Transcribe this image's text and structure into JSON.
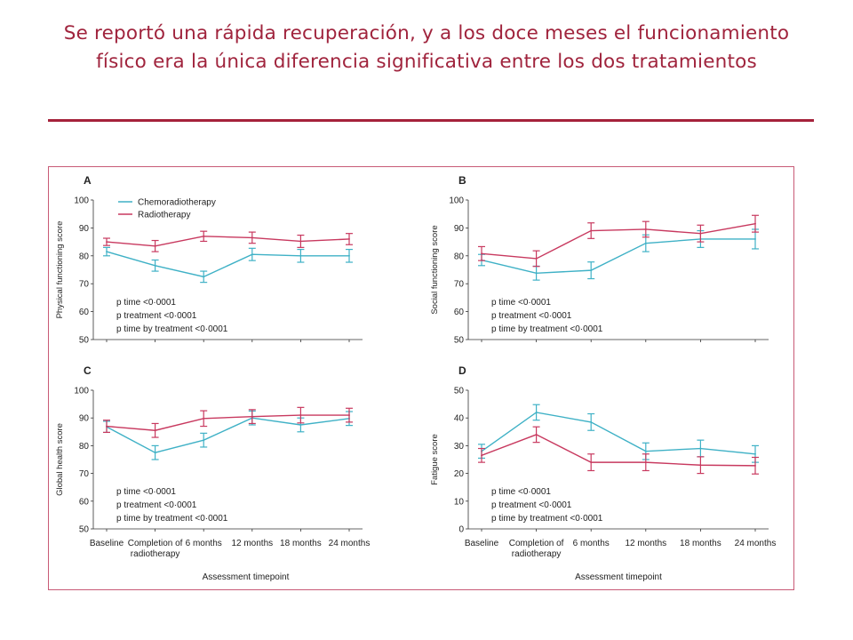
{
  "slide": {
    "title": "Se reportó una rápida recuperación, y a los doce meses el funcionamiento físico era la única diferencia significativa entre los dos tratamientos"
  },
  "colors": {
    "accent": "#a5223b",
    "chemoradiotherapy": "#3fb1c6",
    "radiotherapy": "#c8395f"
  },
  "chart_data": [
    {
      "panel": "A",
      "type": "line",
      "ylabel": "Physical functioning score",
      "ylim": [
        50,
        100
      ],
      "yticks": [
        50,
        60,
        70,
        80,
        90,
        100
      ],
      "categories": [
        "Baseline",
        "Completion of radiotherapy",
        "6 months",
        "12 months",
        "18 months",
        "24 months"
      ],
      "series": [
        {
          "name": "Chemoradiotherapy",
          "values": [
            81.5,
            76.5,
            72.5,
            80.5,
            80,
            80
          ],
          "err": [
            1.5,
            2,
            2,
            2.2,
            2.3,
            2.3
          ]
        },
        {
          "name": "Radiotherapy",
          "values": [
            85,
            83.5,
            87,
            86.5,
            85.2,
            86
          ],
          "err": [
            1.3,
            2,
            1.8,
            2,
            2.2,
            2
          ]
        }
      ],
      "annotations": [
        "p time <0·0001",
        "p treatment <0·0001",
        "p time by treatment <0·0001"
      ],
      "legend": "top-left"
    },
    {
      "panel": "B",
      "type": "line",
      "ylabel": "Social functioning score",
      "ylim": [
        50,
        100
      ],
      "yticks": [
        50,
        60,
        70,
        80,
        90,
        100
      ],
      "categories": [
        "Baseline",
        "Completion of radiotherapy",
        "6 months",
        "12 months",
        "18 months",
        "24 months"
      ],
      "series": [
        {
          "name": "Chemoradiotherapy",
          "values": [
            78.5,
            73.8,
            74.8,
            84.5,
            86,
            86
          ],
          "err": [
            2,
            2.5,
            3,
            3,
            3,
            3.5
          ]
        },
        {
          "name": "Radiotherapy",
          "values": [
            80.8,
            79,
            89,
            89.5,
            88,
            91.5
          ],
          "err": [
            2.5,
            2.8,
            2.8,
            2.8,
            3,
            3
          ]
        }
      ],
      "annotations": [
        "p time <0·0001",
        "p treatment <0·0001",
        "p time by treatment <0·0001"
      ]
    },
    {
      "panel": "C",
      "type": "line",
      "ylabel": "Global health score",
      "ylim": [
        50,
        100
      ],
      "yticks": [
        50,
        60,
        70,
        80,
        90,
        100
      ],
      "categories": [
        "Baseline",
        "Completion of radiotherapy",
        "6 months",
        "12 months",
        "18 months",
        "24 months"
      ],
      "series": [
        {
          "name": "Chemoradiotherapy",
          "values": [
            86.8,
            77.5,
            82,
            90,
            87.5,
            89.8
          ],
          "err": [
            2,
            2.5,
            2.5,
            2.5,
            2.5,
            2.5
          ]
        },
        {
          "name": "Radiotherapy",
          "values": [
            87,
            85.5,
            89.8,
            90.5,
            91,
            91
          ],
          "err": [
            2.2,
            2.5,
            2.8,
            2.5,
            2.8,
            2.5
          ]
        }
      ],
      "annotations": [
        "p time <0·0001",
        "p treatment <0·0001",
        "p time by treatment <0·0001"
      ],
      "xlabel": "Assessment timepoint"
    },
    {
      "panel": "D",
      "type": "line",
      "ylabel": "Fatigue score",
      "ylim": [
        0,
        50
      ],
      "yticks": [
        0,
        10,
        20,
        30,
        40,
        50
      ],
      "categories": [
        "Baseline",
        "Completion of radiotherapy",
        "6 months",
        "12 months",
        "18 months",
        "24 months"
      ],
      "series": [
        {
          "name": "Chemoradiotherapy",
          "values": [
            28,
            42,
            38.5,
            28,
            29,
            27
          ],
          "err": [
            2.5,
            2.8,
            3,
            3,
            3,
            3
          ]
        },
        {
          "name": "Radiotherapy",
          "values": [
            26.5,
            34,
            24,
            24,
            23,
            22.8
          ],
          "err": [
            2.5,
            2.8,
            3,
            3,
            3,
            3
          ]
        }
      ],
      "annotations": [
        "p time <0·0001",
        "p treatment <0·0001",
        "p time by treatment <0·0001"
      ],
      "xlabel": "Assessment timepoint"
    }
  ],
  "x_tick_labels": [
    [
      "Baseline"
    ],
    [
      "Completion of",
      "radiotherapy"
    ],
    [
      "6 months"
    ],
    [
      "12 months"
    ],
    [
      "18 months"
    ],
    [
      "24 months"
    ]
  ]
}
